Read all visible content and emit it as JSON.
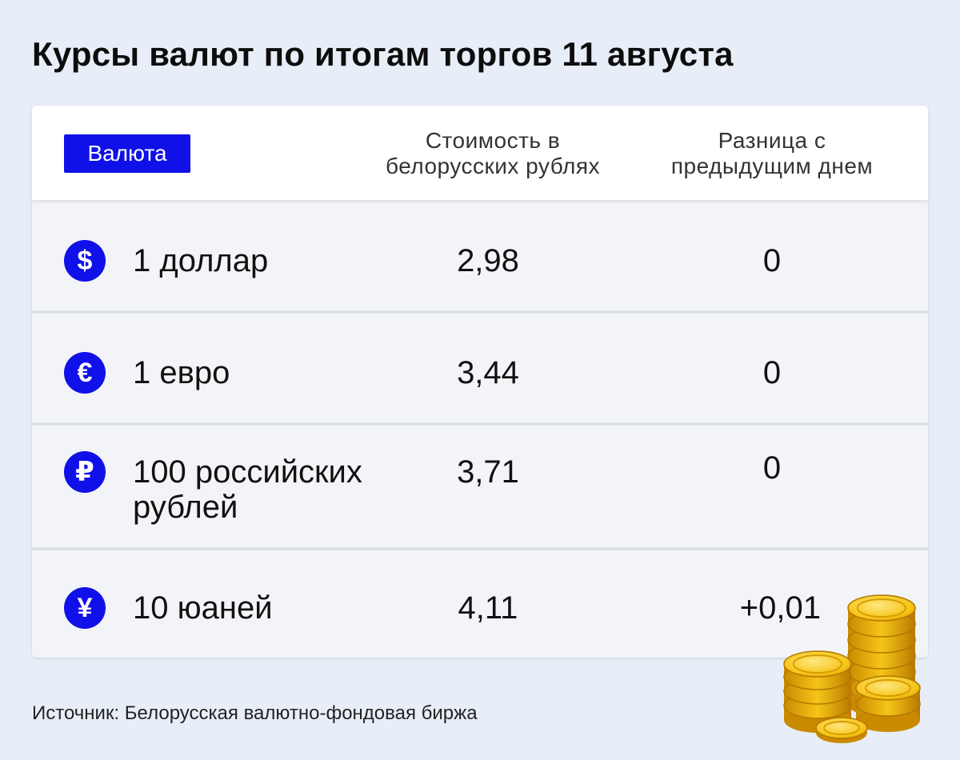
{
  "title": "Курсы валют по итогам торгов 11 августа",
  "header": {
    "currency": "Валюта",
    "value_line1": "Стоимость в",
    "value_line2": "белорусских рублях",
    "diff_line1": "Разница с",
    "diff_line2": "предыдущим днем"
  },
  "rows": [
    {
      "symbol": "$",
      "icon": "dollar-icon",
      "name_line1": "1 доллар",
      "name_line2": "",
      "value": "2,98",
      "diff": "0"
    },
    {
      "symbol": "€",
      "icon": "euro-icon",
      "name_line1": "1 евро",
      "name_line2": "",
      "value": "3,44",
      "diff": "0"
    },
    {
      "symbol": "₽",
      "icon": "ruble-icon",
      "name_line1": "100 российских",
      "name_line2": "рублей",
      "value": "3,71",
      "diff": "0"
    },
    {
      "symbol": "¥",
      "icon": "yuan-icon",
      "name_line1": "10 юаней",
      "name_line2": "",
      "value": "4,11",
      "diff": "+0,01"
    }
  ],
  "source": "Источник: Белорусская валютно-фондовая биржа",
  "colors": {
    "accent": "#1010e8",
    "background": "#e8eef8",
    "row": "#f3f4f7",
    "coin": "#f5c518"
  }
}
